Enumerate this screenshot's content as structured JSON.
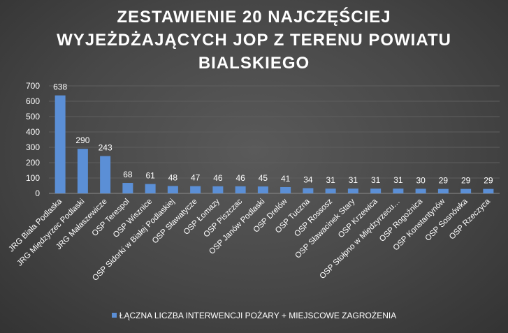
{
  "chart_data": {
    "type": "bar",
    "title": "ZESTAWIENIE 20 NAJCZĘŚCIEJ WYJEŻDŻAJĄCYCH JOP Z TERENU POWIATU BIALSKIEGO",
    "title_lines": [
      "ZESTAWIENIE 20 NAJCZĘŚCIEJ",
      "WYJEŻDŻAJĄCYCH JOP Z TERENU POWIATU",
      "BIALSKIEGO"
    ],
    "xlabel": "",
    "ylabel": "",
    "ylim": [
      0,
      700
    ],
    "yticks": [
      0,
      100,
      200,
      300,
      400,
      500,
      600,
      700
    ],
    "grid": true,
    "legend_position": "bottom",
    "categories": [
      "JRG Biała Podlaska",
      "JRG Międzyrzec Podlaski",
      "JRG Małaszewicze",
      "OSP Terespol",
      "OSP Wisznice",
      "OSP Sidorki w Białej Podlaskiej",
      "OSP Sławatycze",
      "OSP Łomazy",
      "OSP Piszczac",
      "OSP Janów Podlaski",
      "OSP Drelów",
      "OSP Tuczna",
      "OSP Rossosz",
      "OSP Sławacinek Stary",
      "OSP Krzewica",
      "OSP Stołpno w Międzyrzecu…",
      "OSP Rogoźnica",
      "OSP Konstantynów",
      "OSP Sosnówka",
      "OSP Rzeczyca"
    ],
    "series": [
      {
        "name": "ŁĄCZNA LICZBA INTERWENCJI POŻARY + MIEJSCOWE ZAGROŻENIA",
        "color": "#5b8fd6",
        "values": [
          638,
          290,
          243,
          68,
          61,
          48,
          47,
          46,
          46,
          45,
          41,
          34,
          31,
          31,
          31,
          31,
          30,
          29,
          29,
          29
        ]
      }
    ]
  },
  "colors": {
    "background": "#474747",
    "bar": "#5b8fd6",
    "text": "#ffffff",
    "grid": "#5e5e5e"
  }
}
